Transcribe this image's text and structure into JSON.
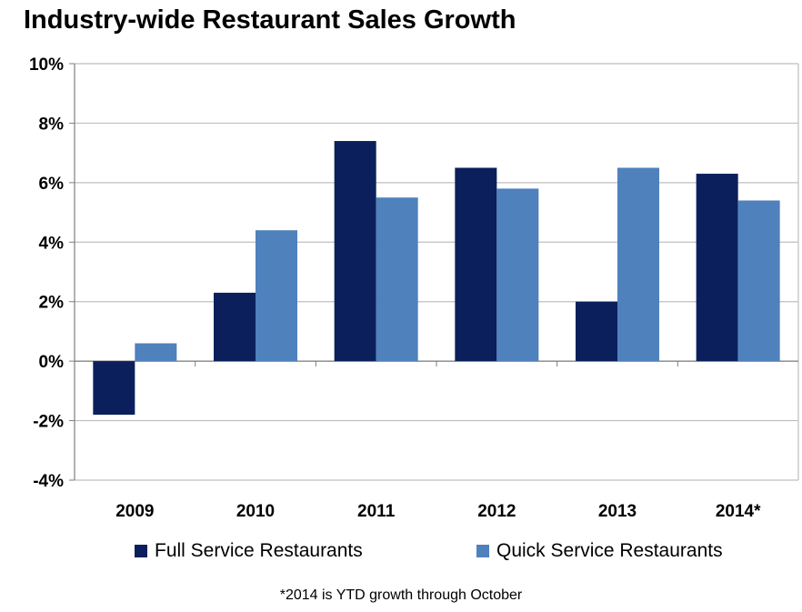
{
  "chart_data": {
    "type": "bar",
    "title": "Industry-wide Restaurant Sales Growth",
    "categories": [
      "2009",
      "2010",
      "2011",
      "2012",
      "2013",
      "2014*"
    ],
    "series": [
      {
        "name": "Full Service Restaurants",
        "color": "#0b1f5c",
        "values": [
          -1.8,
          2.3,
          7.4,
          6.5,
          2.0,
          6.3
        ]
      },
      {
        "name": "Quick Service Restaurants",
        "color": "#4f81bd",
        "values": [
          0.6,
          4.4,
          5.5,
          5.8,
          6.5,
          5.4
        ]
      }
    ],
    "ylim": [
      -4,
      10
    ],
    "yticks": [
      "10%",
      "8%",
      "6%",
      "4%",
      "2%",
      "0%",
      "-2%",
      "-4%"
    ],
    "ytick_values": [
      10,
      8,
      6,
      4,
      2,
      0,
      -2,
      -4
    ],
    "grid": true,
    "legend_position": "bottom"
  },
  "footnote": "*2014 is YTD growth through October"
}
